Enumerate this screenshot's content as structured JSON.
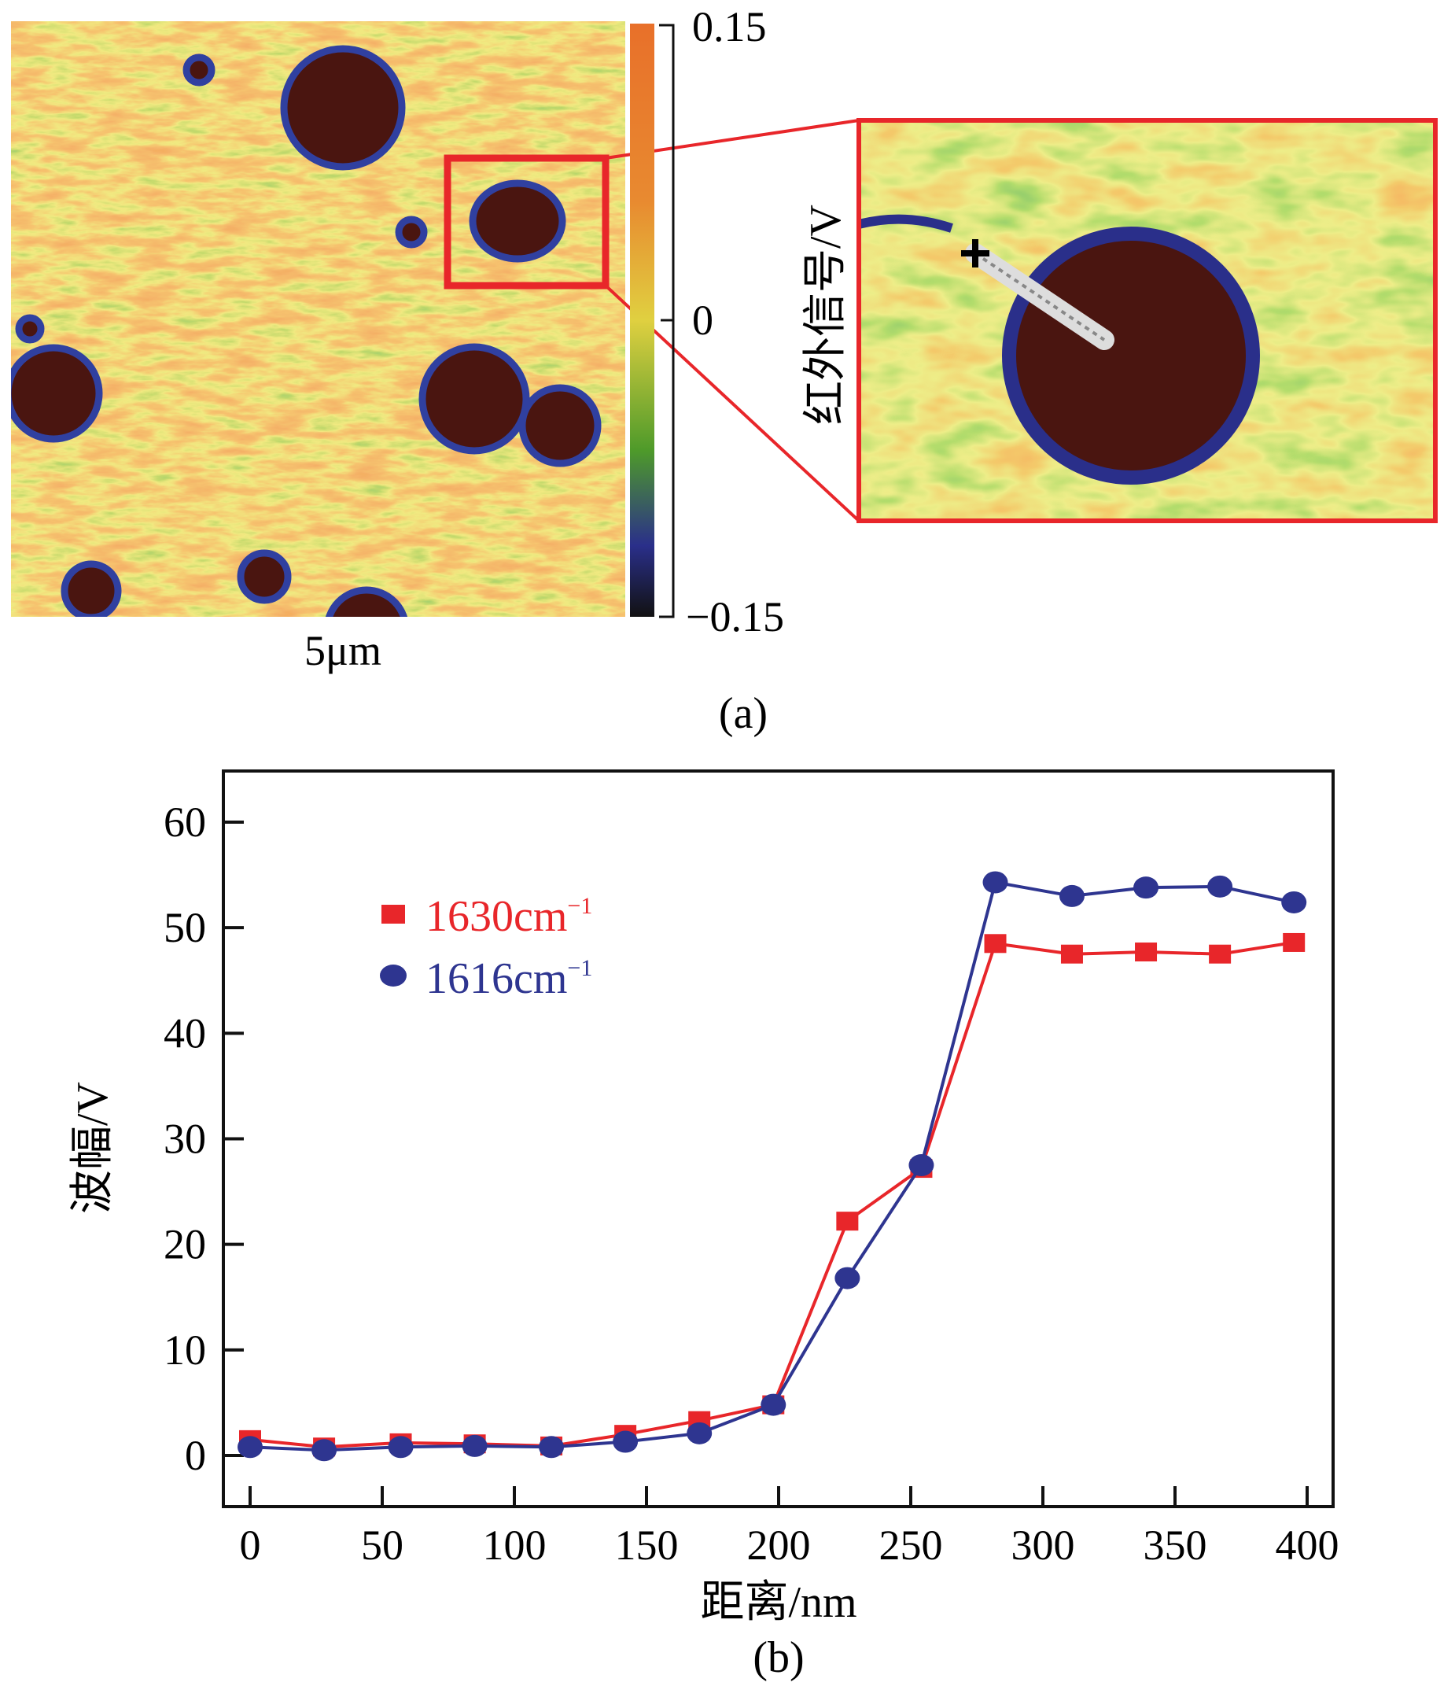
{
  "panel_a": {
    "label": "(a)",
    "scale_bar_label": "5μm",
    "colorbar": {
      "label": "红外信号/V",
      "max_label": "0.15",
      "mid_label": "0",
      "min_label": "−0.15",
      "colors": [
        "#e8702a",
        "#e88a30",
        "#e0d040",
        "#4e9a2a",
        "#2a2f8a",
        "#111111"
      ]
    },
    "colors": {
      "particle": "#4a1510",
      "particle_rim": "#3040a0",
      "highlight_box": "#e8262a"
    }
  },
  "panel_b": {
    "label": "(b)"
  },
  "chart_data": {
    "type": "line",
    "xlabel": "距离/nm",
    "ylabel": "波幅/V",
    "xlim": [
      -10,
      410
    ],
    "ylim": [
      -5,
      65
    ],
    "xticks": [
      "0",
      "50",
      "100",
      "150",
      "200",
      "250",
      "300",
      "350",
      "400"
    ],
    "yticks": [
      "0",
      "10",
      "20",
      "30",
      "40",
      "50",
      "60"
    ],
    "grid": false,
    "legend_position": "top-left",
    "x": [
      0,
      28,
      57,
      85,
      114,
      142,
      170,
      198,
      226,
      254,
      282,
      311,
      339,
      367,
      395
    ],
    "series": [
      {
        "name": "1630cm",
        "name_sup": "−1",
        "color": "#e8262a",
        "marker": "square",
        "values": [
          1.5,
          0.8,
          1.2,
          1.1,
          0.9,
          2.0,
          3.3,
          4.8,
          22.2,
          27.2,
          48.5,
          47.5,
          47.7,
          47.5,
          48.6
        ]
      },
      {
        "name": "1616cm",
        "name_sup": "−1",
        "color": "#2e3590",
        "marker": "circle",
        "values": [
          0.8,
          0.5,
          0.8,
          0.9,
          0.8,
          1.3,
          2.1,
          4.8,
          16.8,
          27.5,
          54.3,
          53.0,
          53.8,
          53.9,
          52.4
        ]
      }
    ]
  }
}
